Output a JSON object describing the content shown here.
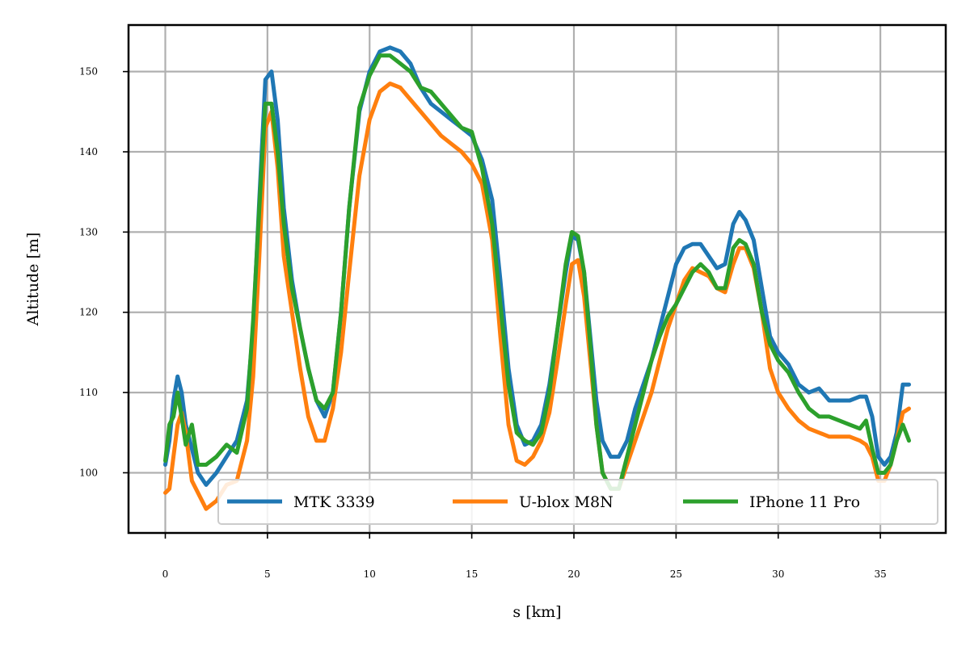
{
  "chart_data": {
    "type": "line",
    "xlabel": "s [km]",
    "ylabel": "Altitude [m]",
    "xlim": [
      -1.8,
      38.2
    ],
    "ylim": [
      92.5,
      155.8
    ],
    "xticks": [
      0,
      5,
      10,
      15,
      20,
      25,
      30,
      35
    ],
    "yticks": [
      100,
      110,
      120,
      130,
      140,
      150
    ],
    "grid": true,
    "legend_position": "lower-right",
    "legend_ncol": 3,
    "series": [
      {
        "name": "MTK 3339",
        "color": "#1f77b4",
        "x": [
          0,
          0.2,
          0.4,
          0.6,
          0.8,
          1.0,
          1.3,
          1.6,
          2.0,
          2.5,
          3.0,
          3.5,
          4.0,
          4.3,
          4.6,
          4.9,
          5.2,
          5.5,
          5.8,
          6.2,
          6.6,
          7.0,
          7.4,
          7.8,
          8.2,
          8.6,
          9.0,
          9.5,
          10.0,
          10.5,
          11.0,
          11.5,
          12.0,
          12.5,
          13.0,
          13.5,
          14.0,
          14.5,
          15.0,
          15.5,
          16.0,
          16.4,
          16.8,
          17.2,
          17.6,
          18.0,
          18.4,
          18.8,
          19.2,
          19.6,
          19.9,
          20.2,
          20.5,
          20.8,
          21.1,
          21.4,
          21.8,
          22.2,
          22.6,
          23.0,
          23.4,
          23.8,
          24.2,
          24.6,
          25.0,
          25.4,
          25.8,
          26.2,
          26.6,
          27.0,
          27.4,
          27.8,
          28.1,
          28.4,
          28.8,
          29.2,
          29.6,
          30.0,
          30.5,
          31.0,
          31.5,
          32.0,
          32.5,
          33.0,
          33.5,
          34.0,
          34.3,
          34.6,
          34.9,
          35.2,
          35.5,
          35.8,
          36.1,
          36.4
        ],
        "y": [
          101,
          104,
          109,
          112,
          110,
          106,
          103,
          100,
          98.5,
          100,
          102,
          104,
          109,
          118,
          134,
          149,
          150,
          144,
          133,
          124,
          118,
          113,
          109,
          107,
          110,
          120,
          133,
          145,
          150,
          152.5,
          153,
          152.5,
          151,
          148,
          146,
          145,
          144,
          143,
          142,
          139,
          134,
          124,
          113,
          106,
          103.5,
          104,
          106,
          111,
          118,
          125,
          129.5,
          129,
          125,
          117,
          109,
          104,
          102,
          102,
          104,
          108,
          111,
          114,
          118,
          122,
          126,
          128,
          128.5,
          128.5,
          127,
          125.5,
          126,
          131,
          132.5,
          131.5,
          129,
          123,
          117,
          115,
          113.5,
          111,
          110,
          110.5,
          109,
          109,
          109,
          109.5,
          109.5,
          107,
          102,
          101,
          102,
          105,
          111,
          111
        ]
      },
      {
        "name": "U-blox M8N",
        "color": "#ff7f0e",
        "x": [
          0,
          0.2,
          0.4,
          0.6,
          0.8,
          1.0,
          1.3,
          1.6,
          2.0,
          2.5,
          3.0,
          3.5,
          4.0,
          4.3,
          4.6,
          4.9,
          5.2,
          5.5,
          5.8,
          6.2,
          6.6,
          7.0,
          7.4,
          7.8,
          8.2,
          8.6,
          9.0,
          9.5,
          10.0,
          10.5,
          11.0,
          11.5,
          12.0,
          12.5,
          13.0,
          13.5,
          14.0,
          14.5,
          15.0,
          15.5,
          16.0,
          16.4,
          16.8,
          17.2,
          17.6,
          18.0,
          18.4,
          18.8,
          19.2,
          19.6,
          19.9,
          20.2,
          20.5,
          20.8,
          21.1,
          21.4,
          21.8,
          22.2,
          22.6,
          23.0,
          23.4,
          23.8,
          24.2,
          24.6,
          25.0,
          25.4,
          25.8,
          26.2,
          26.6,
          27.0,
          27.4,
          27.8,
          28.1,
          28.4,
          28.8,
          29.2,
          29.6,
          30.0,
          30.5,
          31.0,
          31.5,
          32.0,
          32.5,
          33.0,
          33.5,
          34.0,
          34.3,
          34.6,
          34.9,
          35.2,
          35.5,
          35.8,
          36.1,
          36.4
        ],
        "y": [
          97.5,
          98,
          102,
          106,
          107.5,
          105,
          99,
          97.5,
          95.5,
          96.5,
          98.5,
          99,
          104,
          112,
          127,
          143,
          145,
          138,
          127,
          120,
          113,
          107,
          104,
          104,
          108,
          115,
          125,
          137,
          144,
          147.5,
          148.5,
          148,
          146.5,
          145,
          143.5,
          142,
          141,
          140,
          138.5,
          136,
          129,
          117,
          106,
          101.5,
          101,
          102,
          104,
          107.5,
          114,
          121,
          126,
          126.5,
          122,
          114,
          106,
          100,
          98,
          98,
          101,
          104,
          107,
          110,
          114,
          118,
          121,
          124,
          125.5,
          125,
          124.5,
          123,
          122.5,
          126,
          128,
          128,
          125.5,
          120,
          113,
          110,
          108,
          106.5,
          105.5,
          105,
          104.5,
          104.5,
          104.5,
          104,
          103.5,
          102,
          99,
          99,
          101,
          104,
          107.5,
          108
        ]
      },
      {
        "name": "IPhone 11 Pro",
        "color": "#2ca02c",
        "x": [
          0,
          0.2,
          0.4,
          0.6,
          0.8,
          1.0,
          1.3,
          1.6,
          2.0,
          2.5,
          3.0,
          3.5,
          4.0,
          4.3,
          4.6,
          4.9,
          5.2,
          5.5,
          5.8,
          6.2,
          6.6,
          7.0,
          7.4,
          7.8,
          8.2,
          8.6,
          9.0,
          9.5,
          10.0,
          10.5,
          11.0,
          11.5,
          12.0,
          12.5,
          13.0,
          13.5,
          14.0,
          14.5,
          15.0,
          15.5,
          16.0,
          16.4,
          16.8,
          17.2,
          17.6,
          18.0,
          18.4,
          18.8,
          19.2,
          19.6,
          19.9,
          20.2,
          20.5,
          20.8,
          21.1,
          21.4,
          21.8,
          22.2,
          22.6,
          23.0,
          23.4,
          23.8,
          24.2,
          24.6,
          25.0,
          25.4,
          25.8,
          26.2,
          26.6,
          27.0,
          27.4,
          27.8,
          28.1,
          28.4,
          28.8,
          29.2,
          29.6,
          30.0,
          30.5,
          31.0,
          31.5,
          32.0,
          32.5,
          33.0,
          33.5,
          34.0,
          34.3,
          34.6,
          34.9,
          35.2,
          35.5,
          35.8,
          36.1,
          36.4
        ],
        "y": [
          101.5,
          106,
          107,
          110,
          107,
          103.5,
          106,
          101,
          101,
          102,
          103.5,
          102.5,
          108,
          119,
          133,
          146,
          146,
          140,
          131,
          123,
          118,
          113,
          109,
          108,
          110,
          120,
          133,
          145.5,
          149.5,
          152,
          152,
          151,
          150,
          148,
          147.5,
          146,
          144.5,
          143,
          142.5,
          138,
          131,
          121,
          111,
          105,
          104,
          103.5,
          105,
          110,
          118,
          126,
          130,
          129.5,
          125,
          116,
          106,
          100,
          98,
          98,
          102,
          106,
          110,
          114,
          117,
          119.5,
          121,
          123,
          125,
          126,
          125,
          123,
          123,
          128,
          129,
          128.5,
          126,
          120,
          116,
          114,
          112.5,
          110,
          108,
          107,
          107,
          106.5,
          106,
          105.5,
          106.5,
          103,
          100,
          100,
          101,
          104,
          106,
          104
        ]
      }
    ]
  }
}
